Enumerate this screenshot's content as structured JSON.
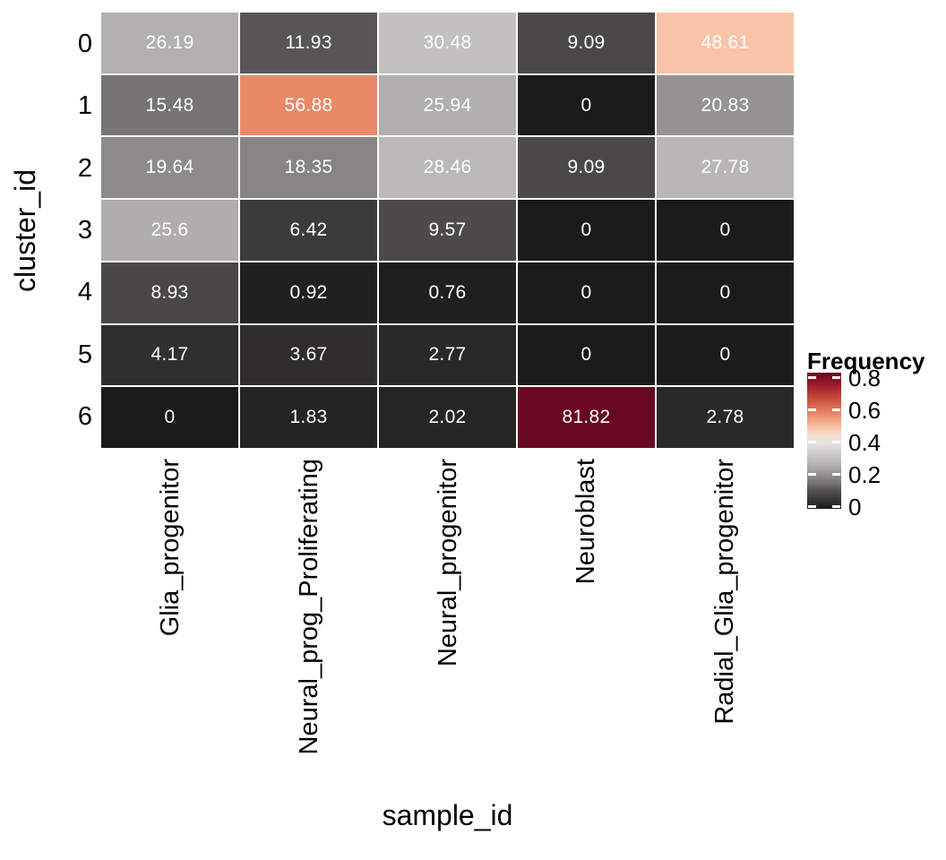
{
  "figure": {
    "background_color": "#ffffff",
    "text_color": "#000000"
  },
  "chart_data": {
    "type": "heatmap",
    "xlabel": "sample_id",
    "ylabel": "cluster_id",
    "x_categories": [
      "Glia_progenitor",
      "Neural_prog_Proliferating",
      "Neural_progenitor",
      "Neuroblast",
      "Radial_Glia_progenitor"
    ],
    "y_categories": [
      "0",
      "1",
      "2",
      "3",
      "4",
      "5",
      "6"
    ],
    "values_percent": [
      [
        26.19,
        11.93,
        30.48,
        9.09,
        48.61
      ],
      [
        15.48,
        56.88,
        25.94,
        0,
        20.83
      ],
      [
        19.64,
        18.35,
        28.46,
        9.09,
        27.78
      ],
      [
        25.6,
        6.42,
        9.57,
        0,
        0
      ],
      [
        8.93,
        0.92,
        0.76,
        0,
        0
      ],
      [
        4.17,
        3.67,
        2.77,
        0,
        0
      ],
      [
        0,
        1.83,
        2.02,
        81.82,
        2.78
      ]
    ],
    "cell_labels": [
      [
        "26.19",
        "11.93",
        "30.48",
        "9.09",
        "48.61"
      ],
      [
        "15.48",
        "56.88",
        "25.94",
        "0",
        "20.83"
      ],
      [
        "19.64",
        "18.35",
        "28.46",
        "9.09",
        "27.78"
      ],
      [
        "25.6",
        "6.42",
        "9.57",
        "0",
        "0"
      ],
      [
        "8.93",
        "0.92",
        "0.76",
        "0",
        "0"
      ],
      [
        "4.17",
        "3.67",
        "2.77",
        "0",
        "0"
      ],
      [
        "0",
        "1.83",
        "2.02",
        "81.82",
        "2.78"
      ]
    ],
    "cell_label_color": "#ffffff",
    "grid_line_color": "#ffffff",
    "legend": {
      "title": "Frequency",
      "position": "right",
      "tick_labels": [
        "0.8",
        "0.6",
        "0.4",
        "0.2",
        "0"
      ],
      "tick_values": [
        0.8,
        0.6,
        0.4,
        0.2,
        0
      ],
      "range": [
        0,
        0.8182
      ],
      "tick_mark_color": "#ffffff"
    },
    "color_scale_stops_percent": [
      [
        0,
        "#1c1b1b"
      ],
      [
        9.09,
        "#4a4848"
      ],
      [
        11.93,
        "#575555"
      ],
      [
        15.48,
        "#767474"
      ],
      [
        19.64,
        "#8d8b8b"
      ],
      [
        26.19,
        "#b2b0b0"
      ],
      [
        30.48,
        "#c2c0c0"
      ],
      [
        40,
        "#e6e4e3"
      ],
      [
        45,
        "#f6dbc6"
      ],
      [
        48.61,
        "#f9c4a8"
      ],
      [
        56.88,
        "#e88a68"
      ],
      [
        66,
        "#c94e3b"
      ],
      [
        74,
        "#a11d2b"
      ],
      [
        81.82,
        "#690822"
      ]
    ]
  }
}
